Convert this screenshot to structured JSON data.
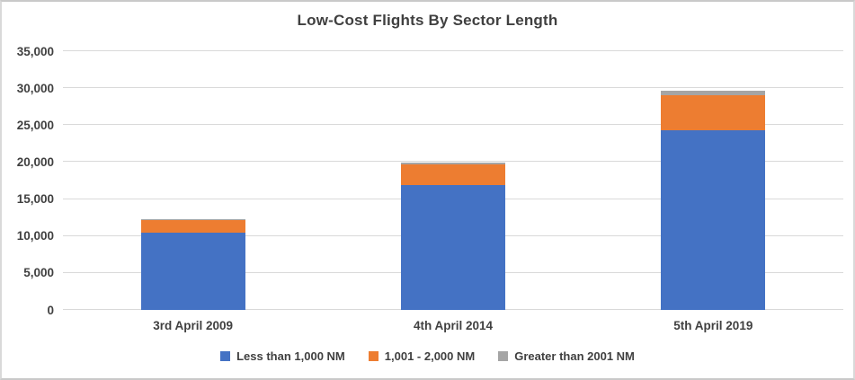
{
  "window": {
    "background": "#FFFFFF",
    "border_color": "#C9C9C9"
  },
  "chart_data": {
    "type": "bar",
    "stacked": true,
    "title": "Low-Cost Flights By Sector Length",
    "title_color": "#404040",
    "text_color": "#404040",
    "gridline_color": "#D9D9D9",
    "grid": true,
    "legend_position": "bottom",
    "categories": [
      "3rd April 2009",
      "4th April 2014",
      "5th April 2019"
    ],
    "series": [
      {
        "name": "Less than 1,000 NM",
        "color": "#4472C4",
        "values": [
          10500,
          16900,
          24350
        ]
      },
      {
        "name": "1,001 - 2,000 NM",
        "color": "#ED7D31",
        "values": [
          1650,
          2800,
          4700
        ]
      },
      {
        "name": "Greater than 2001 NM",
        "color": "#A5A5A5",
        "values": [
          150,
          250,
          550
        ]
      }
    ],
    "totals": [
      12300,
      19950,
      29600
    ],
    "xlabel": "",
    "ylabel": "",
    "ylim": [
      0,
      35000
    ],
    "ytick_step": 5000,
    "ytick_labels": [
      "0",
      "5,000",
      "10,000",
      "15,000",
      "20,000",
      "25,000",
      "30,000",
      "35,000"
    ]
  }
}
